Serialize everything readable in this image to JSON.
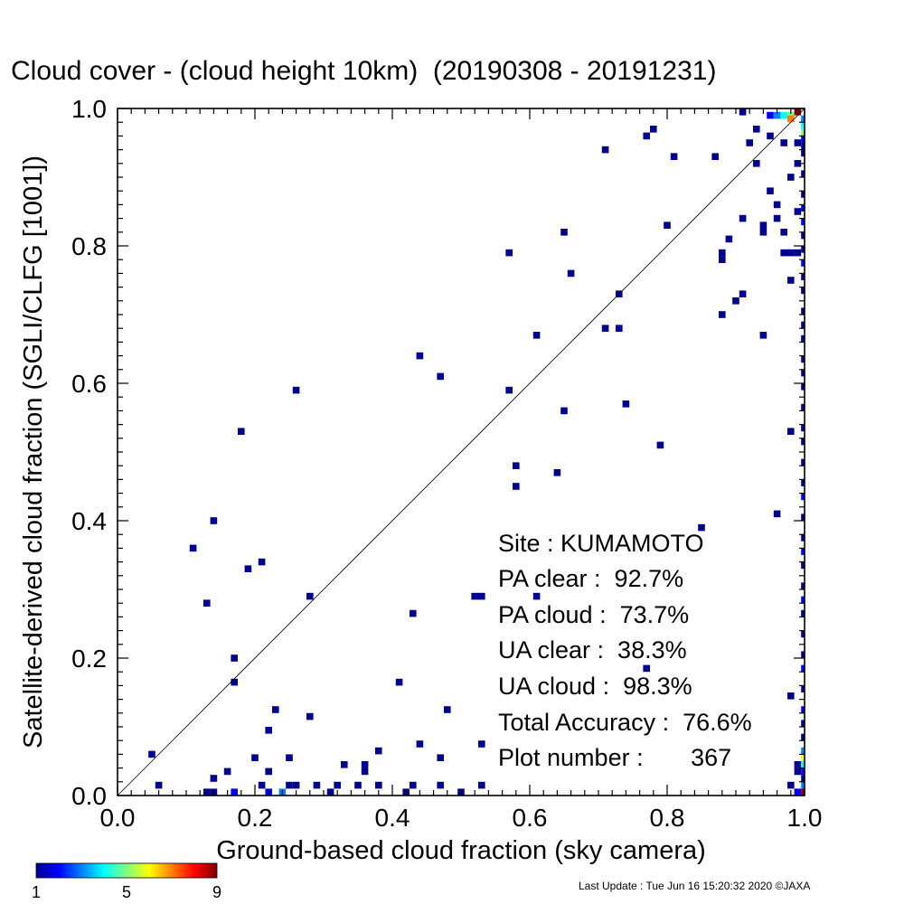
{
  "chart_data": {
    "type": "heatmap",
    "title": "Cloud cover - (cloud height 10km)  (20190308 - 20191231)",
    "xlabel": "Ground-based cloud fraction (sky camera)",
    "ylabel": "Satellite-derived cloud fraction (SGLI/CLFG [1001])",
    "xlim": [
      0,
      1
    ],
    "ylim": [
      0,
      1
    ],
    "x_ticks": [
      "0.0",
      "0.2",
      "0.4",
      "0.6",
      "0.8",
      "1.0"
    ],
    "y_ticks": [
      "0.0",
      "0.2",
      "0.4",
      "0.6",
      "0.8",
      "1.0"
    ],
    "reference_line": "1:1 diagonal",
    "grid": false,
    "colorbar": {
      "min": 1,
      "max": 9,
      "tick_labels": [
        "1",
        "5",
        "9"
      ],
      "colormap": "rainbow"
    },
    "stats": {
      "site": "Site : KUMAMOTO",
      "pa_clear": "PA clear :  92.7%",
      "pa_cloud": "PA cloud :  73.7%",
      "ua_clear": "UA clear :  38.3%",
      "ua_cloud": "UA cloud :  98.3%",
      "total_accuracy": "Total Accuracy :  76.6%",
      "plot_number": "Plot number :       367"
    },
    "cells": [
      [
        0.05,
        0.06,
        1
      ],
      [
        0.06,
        0.015,
        1
      ],
      [
        0.11,
        0.36,
        1
      ],
      [
        0.13,
        0.28,
        1
      ],
      [
        0.14,
        0.4,
        1
      ],
      [
        0.13,
        0.005,
        1
      ],
      [
        0.14,
        0.025,
        1
      ],
      [
        0.16,
        0.035,
        1
      ],
      [
        0.17,
        0.2,
        1
      ],
      [
        0.17,
        0.165,
        1
      ],
      [
        0.18,
        0.53,
        1
      ],
      [
        0.19,
        0.33,
        1
      ],
      [
        0.2,
        0.055,
        1
      ],
      [
        0.21,
        0.34,
        1
      ],
      [
        0.21,
        0.015,
        1
      ],
      [
        0.22,
        0.095,
        1
      ],
      [
        0.22,
        0.035,
        1
      ],
      [
        0.23,
        0.125,
        1
      ],
      [
        0.25,
        0.055,
        1
      ],
      [
        0.25,
        0.015,
        1
      ],
      [
        0.26,
        0.59,
        1
      ],
      [
        0.26,
        0.015,
        1
      ],
      [
        0.28,
        0.115,
        1
      ],
      [
        0.28,
        0.29,
        1
      ],
      [
        0.29,
        0.015,
        1
      ],
      [
        0.32,
        0.015,
        1
      ],
      [
        0.33,
        0.045,
        1
      ],
      [
        0.35,
        0.015,
        1
      ],
      [
        0.36,
        0.045,
        1
      ],
      [
        0.36,
        0.035,
        1
      ],
      [
        0.38,
        0.065,
        1
      ],
      [
        0.38,
        0.015,
        1
      ],
      [
        0.41,
        0.165,
        1
      ],
      [
        0.43,
        0.265,
        1
      ],
      [
        0.43,
        0.015,
        1
      ],
      [
        0.44,
        0.64,
        1
      ],
      [
        0.44,
        0.075,
        1
      ],
      [
        0.47,
        0.61,
        1
      ],
      [
        0.47,
        0.055,
        1
      ],
      [
        0.47,
        0.015,
        1
      ],
      [
        0.48,
        0.125,
        1
      ],
      [
        0.52,
        0.29,
        1
      ],
      [
        0.53,
        0.29,
        1
      ],
      [
        0.53,
        0.075,
        1
      ],
      [
        0.53,
        0.015,
        1
      ],
      [
        0.57,
        0.79,
        1
      ],
      [
        0.57,
        0.59,
        1
      ],
      [
        0.58,
        0.48,
        1
      ],
      [
        0.58,
        0.45,
        1
      ],
      [
        0.61,
        0.67,
        1
      ],
      [
        0.61,
        0.29,
        1
      ],
      [
        0.64,
        0.47,
        1
      ],
      [
        0.65,
        0.82,
        1
      ],
      [
        0.65,
        0.56,
        1
      ],
      [
        0.66,
        0.76,
        1
      ],
      [
        0.71,
        0.94,
        1
      ],
      [
        0.71,
        0.68,
        1
      ],
      [
        0.73,
        0.73,
        1
      ],
      [
        0.73,
        0.68,
        1
      ],
      [
        0.74,
        0.57,
        1
      ],
      [
        0.77,
        0.96,
        1
      ],
      [
        0.78,
        0.97,
        1
      ],
      [
        0.79,
        0.51,
        1
      ],
      [
        0.8,
        0.83,
        1
      ],
      [
        0.81,
        0.93,
        1
      ],
      [
        0.77,
        0.185,
        1
      ],
      [
        0.85,
        0.39,
        1
      ],
      [
        0.87,
        0.93,
        1
      ],
      [
        0.88,
        0.79,
        1
      ],
      [
        0.88,
        0.78,
        1
      ],
      [
        0.88,
        0.7,
        1
      ],
      [
        0.89,
        0.81,
        1
      ],
      [
        0.9,
        0.72,
        1
      ],
      [
        0.91,
        0.73,
        1
      ],
      [
        0.91,
        0.84,
        1
      ],
      [
        0.92,
        0.95,
        1
      ],
      [
        0.93,
        0.92,
        1
      ],
      [
        0.93,
        0.97,
        1
      ],
      [
        0.94,
        0.67,
        1
      ],
      [
        0.94,
        0.83,
        1
      ],
      [
        0.94,
        0.82,
        1
      ],
      [
        0.95,
        0.88,
        1
      ],
      [
        0.95,
        0.96,
        1
      ],
      [
        0.96,
        0.86,
        1
      ],
      [
        0.96,
        0.84,
        1
      ],
      [
        0.96,
        0.41,
        1
      ],
      [
        0.97,
        0.95,
        1
      ],
      [
        0.97,
        0.82,
        1
      ],
      [
        0.97,
        0.79,
        1
      ],
      [
        0.98,
        0.9,
        1
      ],
      [
        0.98,
        0.75,
        1
      ],
      [
        0.98,
        0.53,
        1
      ],
      [
        0.98,
        0.145,
        1
      ],
      [
        0.98,
        0.79,
        1
      ],
      [
        0.99,
        0.85,
        1
      ],
      [
        0.99,
        0.79,
        1
      ],
      [
        0.99,
        0.95,
        1
      ],
      [
        0.99,
        0.92,
        1
      ],
      [
        0.99,
        0.045,
        1
      ],
      [
        0.99,
        0.035,
        1
      ],
      [
        0.91,
        0.995,
        1
      ],
      [
        0.95,
        0.99,
        2
      ],
      [
        0.96,
        0.99,
        3
      ],
      [
        0.97,
        0.99,
        4
      ],
      [
        0.98,
        0.99,
        5
      ],
      [
        0.99,
        0.995,
        9
      ],
      [
        0.98,
        0.985,
        7
      ],
      [
        1.0,
        0.985,
        3
      ],
      [
        1.0,
        0.975,
        4
      ],
      [
        1.0,
        0.965,
        5
      ],
      [
        1.0,
        0.955,
        2
      ],
      [
        1.0,
        0.945,
        1
      ],
      [
        1.0,
        0.935,
        1
      ],
      [
        1.0,
        0.905,
        1
      ],
      [
        1.0,
        0.875,
        1
      ],
      [
        1.0,
        0.855,
        2
      ],
      [
        1.0,
        0.835,
        2
      ],
      [
        1.0,
        0.815,
        1
      ],
      [
        1.0,
        0.795,
        1
      ],
      [
        1.0,
        0.775,
        2
      ],
      [
        1.0,
        0.755,
        1
      ],
      [
        1.0,
        0.735,
        1
      ],
      [
        1.0,
        0.705,
        1
      ],
      [
        1.0,
        0.685,
        1
      ],
      [
        1.0,
        0.665,
        1
      ],
      [
        1.0,
        0.635,
        1
      ],
      [
        1.0,
        0.615,
        1
      ],
      [
        1.0,
        0.595,
        1
      ],
      [
        1.0,
        0.565,
        1
      ],
      [
        1.0,
        0.535,
        1
      ],
      [
        1.0,
        0.515,
        1
      ],
      [
        1.0,
        0.485,
        1
      ],
      [
        1.0,
        0.455,
        1
      ],
      [
        1.0,
        0.435,
        2
      ],
      [
        1.0,
        0.405,
        1
      ],
      [
        1.0,
        0.375,
        1
      ],
      [
        1.0,
        0.355,
        2
      ],
      [
        1.0,
        0.335,
        1
      ],
      [
        1.0,
        0.305,
        1
      ],
      [
        1.0,
        0.285,
        2
      ],
      [
        1.0,
        0.265,
        1
      ],
      [
        1.0,
        0.235,
        1
      ],
      [
        1.0,
        0.205,
        1
      ],
      [
        1.0,
        0.185,
        2
      ],
      [
        1.0,
        0.155,
        1
      ],
      [
        1.0,
        0.125,
        2
      ],
      [
        1.0,
        0.105,
        1
      ],
      [
        1.0,
        0.085,
        1
      ],
      [
        1.0,
        0.065,
        3
      ],
      [
        1.0,
        0.055,
        6
      ],
      [
        1.0,
        0.045,
        4
      ],
      [
        1.0,
        0.035,
        2
      ],
      [
        1.0,
        0.025,
        1
      ],
      [
        1.0,
        0.015,
        3
      ],
      [
        1.0,
        0.005,
        9
      ],
      [
        0.99,
        0.005,
        2
      ],
      [
        0.98,
        0.015,
        1
      ],
      [
        0.24,
        0.005,
        3
      ],
      [
        0.17,
        0.005,
        2
      ],
      [
        0.31,
        0.005,
        1
      ],
      [
        0.42,
        0.005,
        1
      ],
      [
        0.5,
        0.005,
        1
      ],
      [
        0.22,
        0.005,
        2
      ],
      [
        0.14,
        0.005,
        1
      ]
    ]
  },
  "footer": {
    "last_update": "Last Update : Tue Jun 16 15:20:32 2020  ©JAXA"
  }
}
